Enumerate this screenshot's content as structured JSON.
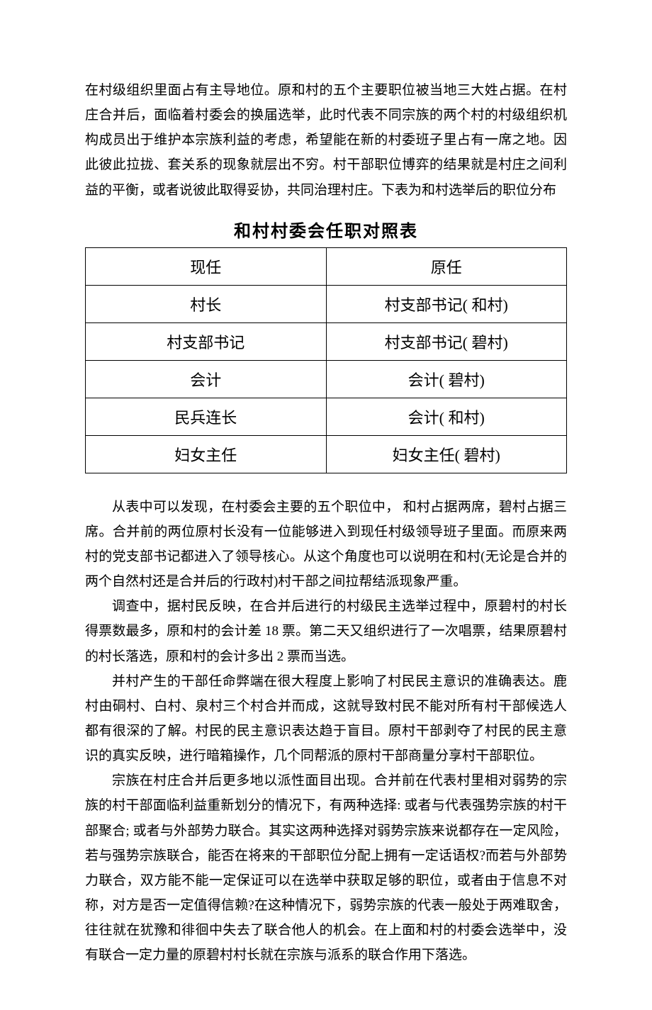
{
  "intro": "在村级组织里面占有主导地位。原和村的五个主要职位被当地三大姓占据。在村庄合并后，面临着村委会的换届选举，此时代表不同宗族的两个村的村级组织机构成员出于维护本宗族利益的考虑，希望能在新的村委班子里占有一席之地。因此彼此拉拢、套关系的现象就层出不穷。村干部职位博弈的结果就是村庄之间利益的平衡，或者说彼此取得妥协，共同治理村庄。下表为和村选举后的职位分布",
  "table": {
    "title": "和村村委会任职对照表",
    "columns": [
      "现任",
      "原任"
    ],
    "rows": [
      [
        "村长",
        "村支部书记( 和村)"
      ],
      [
        "村支部书记",
        "村支部书记( 碧村)"
      ],
      [
        "会计",
        "会计( 碧村)"
      ],
      [
        "民兵连长",
        "会计( 和村)"
      ],
      [
        "妇女主任",
        "妇女主任( 碧村)"
      ]
    ]
  },
  "p1": "从表中可以发现，在村委会主要的五个职位中， 和村占据两席，碧村占据三席。合并前的两位原村长没有一位能够进入到现任村级领导班子里面。而原来两村的党支部书记都进入了领导核心。从这个角度也可以说明在和村(无论是合并的两个自然村还是合并后的行政村)村干部之间拉帮结派现象严重。",
  "p2": "调查中，据村民反映，在合并后进行的村级民主选举过程中，原碧村的村长得票数最多，原和村的会计差 18 票。第二天又组织进行了一次唱票，结果原碧村的村长落选，原和村的会计多出 2 票而当选。",
  "p3": "并村产生的干部任命弊端在很大程度上影响了村民民主意识的准确表达。鹿村由硐村、白村、泉村三个村合并而成，这就导致村民不能对所有村干部候选人都有很深的了解。村民的民主意识表达趋于盲目。原村干部剥夺了村民的民主意识的真实反映，进行暗箱操作，几个同帮派的原村干部商量分享村干部职位。",
  "p4": "宗族在村庄合并后更多地以派性面目出现。合并前在代表村里相对弱势的宗族的村干部面临利益重新划分的情况下，有两种选择: 或者与代表强势宗族的村干部聚合; 或者与外部势力联合。其实这两种选择对弱势宗族来说都存在一定风险，若与强势宗族联合，能否在将来的干部职位分配上拥有一定话语权?而若与外部势力联合，双方能不能一定保证可以在选举中获取足够的职位，或者由于信息不对称，对方是否一定值得信赖?在这种情况下，弱势宗族的代表一般处于两难取舍，往往就在犹豫和徘徊中失去了联合他人的机会。在上面和村的村委会选举中，没有联合一定力量的原碧村村长就在宗族与派系的联合作用下落选。"
}
